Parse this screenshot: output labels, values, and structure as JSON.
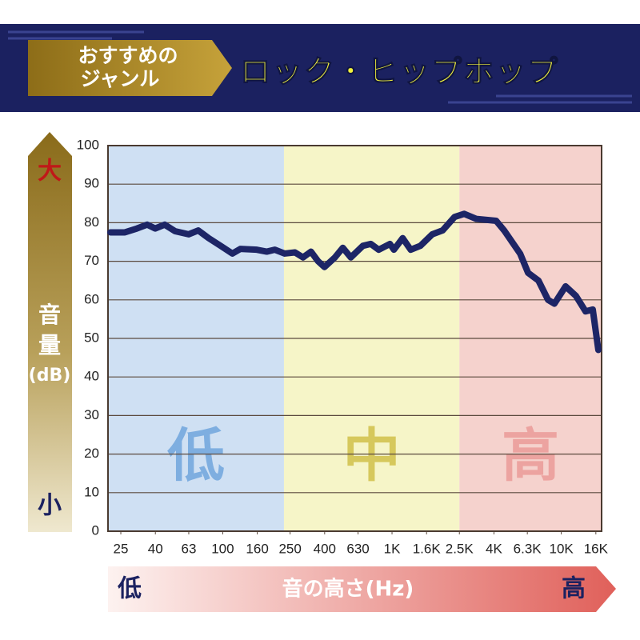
{
  "chart_data": {
    "type": "line",
    "title": "ロック・ヒップホップ",
    "tag": [
      "おすすめの",
      "ジャンル"
    ],
    "ylabel": [
      "音",
      "量",
      "(dB)"
    ],
    "y_high": "大",
    "y_low": "小",
    "xlabel": "音の高さ(Hz)",
    "x_low": "低",
    "x_high": "高",
    "bands": [
      {
        "label": "低",
        "range": [
          21,
          230
        ],
        "color": "#cfe0f3",
        "label_color": "#7eaee0"
      },
      {
        "label": "中",
        "range": [
          230,
          2500
        ],
        "color": "#f6f5c8",
        "label_color": "#d6c85c"
      },
      {
        "label": "高",
        "range": [
          2500,
          17300
        ],
        "color": "#f5d2cd",
        "label_color": "#eca3a0"
      }
    ],
    "xscale": "log",
    "xlim": [
      21,
      17300
    ],
    "xticks": [
      25,
      40,
      63,
      100,
      160,
      250,
      400,
      630,
      {
        "value": 1000,
        "label": "1K"
      },
      {
        "value": 1600,
        "label": "1.6K"
      },
      {
        "value": 2500,
        "label": "2.5K"
      },
      {
        "value": 4000,
        "label": "4K"
      },
      {
        "value": 6300,
        "label": "6.3K"
      },
      {
        "value": 10000,
        "label": "10K"
      },
      {
        "value": 16000,
        "label": "16K"
      }
    ],
    "ylim": [
      0,
      100
    ],
    "yticks": [
      0,
      10,
      20,
      30,
      40,
      50,
      60,
      70,
      80,
      90,
      100
    ],
    "grid": true,
    "color": "#1d2566",
    "x": [
      21.7,
      26.4,
      31.1,
      35.8,
      39.9,
      45.4,
      52.3,
      62.9,
      71.7,
      82.6,
      97.2,
      114,
      127,
      159,
      182,
      203,
      232,
      267,
      298,
      332,
      366,
      399,
      460,
      512,
      571,
      672,
      749,
      834,
      972,
      1026,
      1156,
      1289,
      1469,
      1729,
      1990,
      2342,
      2668,
      3142,
      4120,
      4595,
      5710,
      6364,
      7327,
      8349,
      9104,
      10600,
      12210,
      13910,
      15340,
      16550
    ],
    "values": [
      77.5,
      77.5,
      78.5,
      79.5,
      78.5,
      79.5,
      77.8,
      77,
      78,
      76,
      74,
      72,
      73.2,
      73,
      72.5,
      73,
      72,
      72.3,
      71,
      72.5,
      70,
      68.5,
      71,
      73.5,
      71,
      74,
      74.5,
      73,
      74.5,
      73,
      76,
      73,
      74,
      77,
      78,
      81.5,
      82.3,
      81,
      80.5,
      78,
      72,
      67,
      65,
      60,
      59,
      63.5,
      61,
      57,
      57.5,
      47
    ]
  }
}
